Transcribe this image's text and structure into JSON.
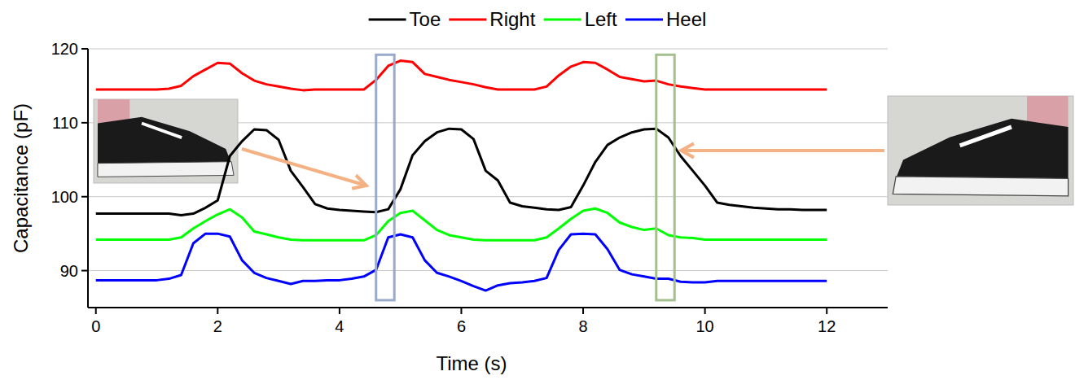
{
  "chart_data": {
    "type": "line",
    "x_label": "Time (s)",
    "y_label": "Capacitance (pF)",
    "x": [
      0,
      0.2,
      0.4,
      0.6,
      0.8,
      1.0,
      1.2,
      1.4,
      1.6,
      1.8,
      2.0,
      2.2,
      2.4,
      2.6,
      2.8,
      3.0,
      3.2,
      3.4,
      3.6,
      3.8,
      4.0,
      4.2,
      4.4,
      4.6,
      4.8,
      5.0,
      5.2,
      5.4,
      5.6,
      5.8,
      6.0,
      6.2,
      6.4,
      6.6,
      6.8,
      7.0,
      7.2,
      7.4,
      7.6,
      7.8,
      8.0,
      8.2,
      8.4,
      8.6,
      8.8,
      9.0,
      9.2,
      9.4,
      9.6,
      9.8,
      10.0,
      10.2,
      10.4,
      10.6,
      10.8,
      11.0,
      11.2,
      11.4,
      11.6,
      11.8,
      12.0
    ],
    "series": [
      {
        "name": "Toe",
        "color": "#000000",
        "values": [
          97.7,
          97.7,
          97.7,
          97.7,
          97.7,
          97.7,
          97.7,
          97.5,
          97.7,
          98.5,
          99.5,
          105.5,
          107.5,
          109.1,
          109.0,
          107.7,
          103.5,
          101.3,
          99.0,
          98.4,
          98.2,
          98.1,
          98.0,
          97.9,
          98.3,
          101.0,
          105.6,
          107.5,
          108.7,
          109.2,
          109.1,
          107.8,
          103.5,
          102.2,
          99.2,
          98.7,
          98.5,
          98.3,
          98.2,
          98.6,
          101.5,
          104.7,
          107.0,
          108.0,
          108.7,
          109.1,
          109.2,
          108.0,
          105.5,
          103.5,
          101.5,
          99.2,
          98.9,
          98.7,
          98.5,
          98.4,
          98.3,
          98.3,
          98.2,
          98.2,
          98.2
        ]
      },
      {
        "name": "Right",
        "color": "#ff0000",
        "values": [
          114.5,
          114.5,
          114.5,
          114.5,
          114.5,
          114.5,
          114.6,
          115.0,
          116.3,
          117.2,
          118.1,
          118.0,
          116.7,
          115.7,
          115.2,
          114.9,
          114.6,
          114.4,
          114.5,
          114.5,
          114.5,
          114.5,
          114.5,
          115.8,
          117.7,
          118.4,
          118.2,
          116.6,
          116.2,
          115.8,
          115.5,
          115.2,
          114.8,
          114.5,
          114.5,
          114.5,
          114.5,
          114.9,
          116.4,
          117.6,
          118.2,
          118.1,
          117.2,
          116.2,
          115.9,
          115.6,
          115.7,
          115.2,
          114.9,
          114.7,
          114.5,
          114.5,
          114.5,
          114.5,
          114.5,
          114.5,
          114.5,
          114.5,
          114.5,
          114.5,
          114.5
        ]
      },
      {
        "name": "Left",
        "color": "#00ff00",
        "values": [
          94.2,
          94.2,
          94.2,
          94.2,
          94.2,
          94.2,
          94.2,
          94.5,
          95.7,
          96.7,
          97.6,
          98.3,
          97.2,
          95.3,
          94.9,
          94.5,
          94.2,
          94.1,
          94.1,
          94.1,
          94.1,
          94.1,
          94.1,
          94.8,
          96.7,
          97.8,
          98.1,
          96.8,
          95.5,
          94.8,
          94.5,
          94.2,
          94.1,
          94.1,
          94.1,
          94.1,
          94.1,
          94.5,
          95.7,
          97.0,
          98.1,
          98.4,
          97.8,
          96.5,
          95.9,
          95.5,
          95.7,
          94.8,
          94.5,
          94.4,
          94.2,
          94.2,
          94.2,
          94.2,
          94.2,
          94.2,
          94.2,
          94.2,
          94.2,
          94.2,
          94.2
        ]
      },
      {
        "name": "Heel",
        "color": "#0000ff",
        "values": [
          88.7,
          88.7,
          88.7,
          88.7,
          88.7,
          88.7,
          88.9,
          89.4,
          93.7,
          95.0,
          95.0,
          94.6,
          91.4,
          89.7,
          89.0,
          88.6,
          88.2,
          88.6,
          88.6,
          88.7,
          88.7,
          88.9,
          89.2,
          90.1,
          94.5,
          94.9,
          94.5,
          91.4,
          89.7,
          89.2,
          88.6,
          87.9,
          87.3,
          88.0,
          88.3,
          88.4,
          88.6,
          89.0,
          92.8,
          94.9,
          95.0,
          94.9,
          92.9,
          90.1,
          89.5,
          89.2,
          88.9,
          88.9,
          88.5,
          88.4,
          88.4,
          88.6,
          88.6,
          88.6,
          88.6,
          88.6,
          88.6,
          88.6,
          88.6,
          88.6,
          88.6
        ]
      }
    ],
    "xlim": [
      -0.13,
      13
    ],
    "ylim": [
      85,
      120
    ],
    "xticks": [
      0,
      2,
      4,
      6,
      8,
      10,
      12
    ],
    "yticks": [
      90,
      100,
      110,
      120
    ],
    "grid": true,
    "legend": "top",
    "highlights": [
      {
        "xlim": [
          4.6,
          4.9
        ],
        "ylim": [
          86,
          119.2
        ],
        "color": "#9aaacb"
      },
      {
        "xlim": [
          9.2,
          9.5
        ],
        "ylim": [
          86,
          119.2
        ],
        "color": "#a5c08f"
      }
    ]
  }
}
